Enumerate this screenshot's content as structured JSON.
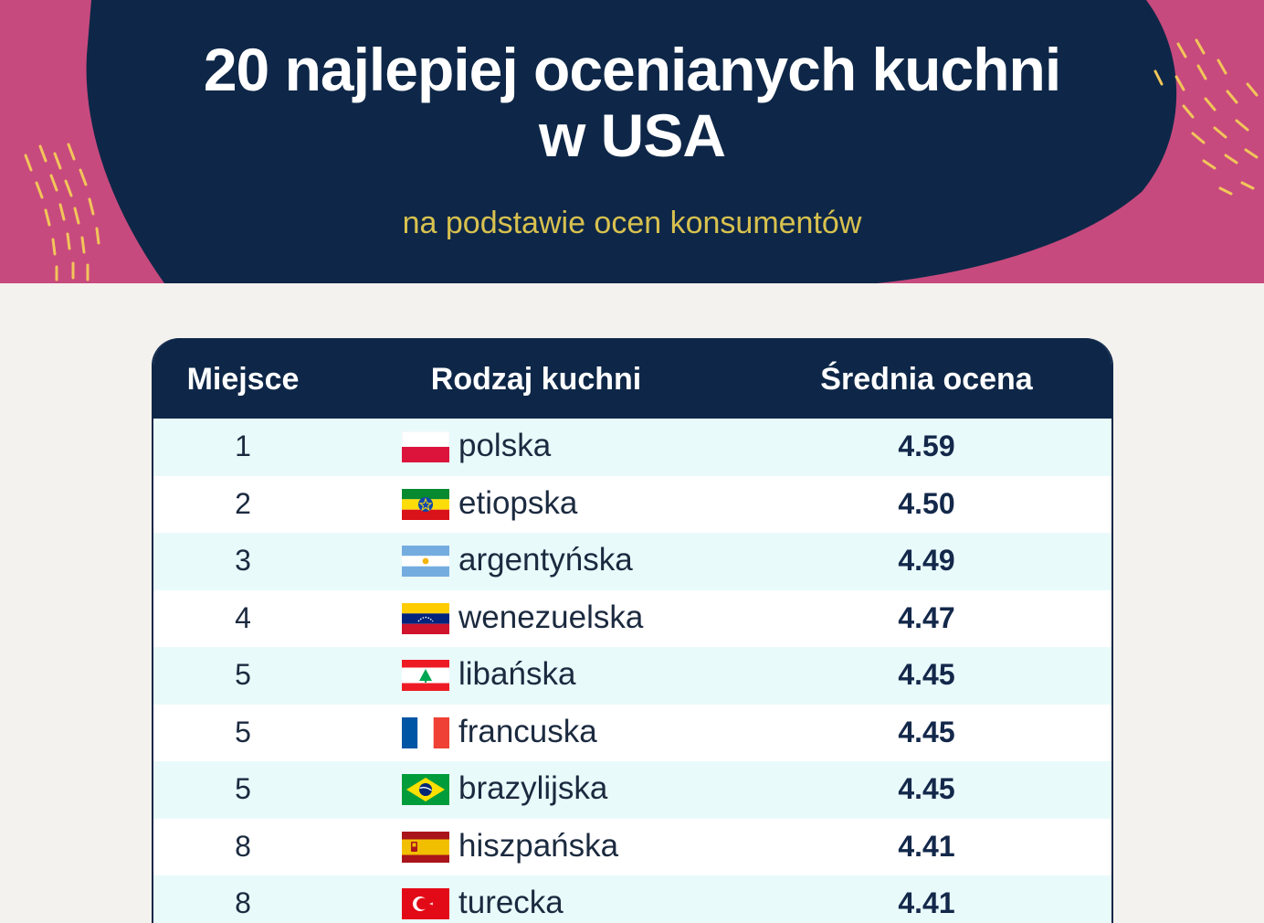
{
  "header": {
    "title_line1": "20 najlepiej ocenianych kuchni",
    "title_line2": "w USA",
    "subtitle": "na podstawie ocen konsumentów"
  },
  "colors": {
    "navy": "#0e2748",
    "pink": "#c74a7e",
    "gold": "#d8c14f",
    "row_alt": "#e9fafb"
  },
  "chart_data": {
    "type": "table",
    "columns": [
      "Miejsce",
      "Rodzaj kuchni",
      "Średnia ocena"
    ],
    "rows": [
      {
        "rank": "1",
        "cuisine": "polska",
        "score": "4.59",
        "flag": "poland-flag-icon"
      },
      {
        "rank": "2",
        "cuisine": "etiopska",
        "score": "4.50",
        "flag": "ethiopia-flag-icon"
      },
      {
        "rank": "3",
        "cuisine": "argentyńska",
        "score": "4.49",
        "flag": "argentina-flag-icon"
      },
      {
        "rank": "4",
        "cuisine": "wenezuelska",
        "score": "4.47",
        "flag": "venezuela-flag-icon"
      },
      {
        "rank": "5",
        "cuisine": "libańska",
        "score": "4.45",
        "flag": "lebanon-flag-icon"
      },
      {
        "rank": "5",
        "cuisine": "francuska",
        "score": "4.45",
        "flag": "france-flag-icon"
      },
      {
        "rank": "5",
        "cuisine": "brazylijska",
        "score": "4.45",
        "flag": "brazil-flag-icon"
      },
      {
        "rank": "8",
        "cuisine": "hiszpańska",
        "score": "4.41",
        "flag": "spain-flag-icon"
      },
      {
        "rank": "8",
        "cuisine": "turecka",
        "score": "4.41",
        "flag": "turkey-flag-icon"
      }
    ]
  }
}
